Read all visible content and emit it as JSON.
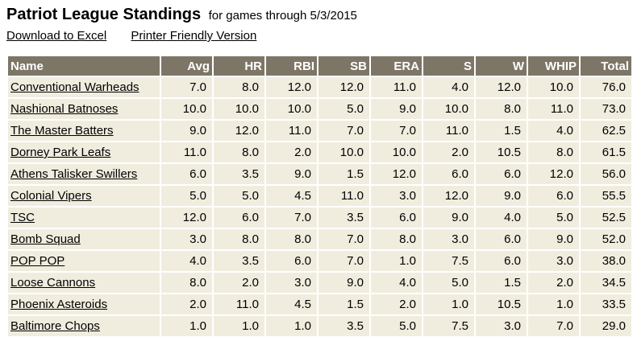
{
  "header": {
    "title": "Patriot League Standings",
    "subtitle": "for games through 5/3/2015",
    "links": [
      {
        "label": "Download to Excel"
      },
      {
        "label": "Printer Friendly Version"
      }
    ]
  },
  "table": {
    "columns": [
      "Name",
      "Avg",
      "HR",
      "RBI",
      "SB",
      "ERA",
      "S",
      "W",
      "WHIP",
      "Total"
    ],
    "rows": [
      {
        "name": "Conventional Warheads",
        "values": [
          "7.0",
          "8.0",
          "12.0",
          "12.0",
          "11.0",
          "4.0",
          "12.0",
          "10.0",
          "76.0"
        ]
      },
      {
        "name": "Nashional Batnoses",
        "values": [
          "10.0",
          "10.0",
          "10.0",
          "5.0",
          "9.0",
          "10.0",
          "8.0",
          "11.0",
          "73.0"
        ]
      },
      {
        "name": "The Master Batters",
        "values": [
          "9.0",
          "12.0",
          "11.0",
          "7.0",
          "7.0",
          "11.0",
          "1.5",
          "4.0",
          "62.5"
        ]
      },
      {
        "name": "Dorney Park Leafs",
        "values": [
          "11.0",
          "8.0",
          "2.0",
          "10.0",
          "10.0",
          "2.0",
          "10.5",
          "8.0",
          "61.5"
        ]
      },
      {
        "name": "Athens Talisker Swillers",
        "values": [
          "6.0",
          "3.5",
          "9.0",
          "1.5",
          "12.0",
          "6.0",
          "6.0",
          "12.0",
          "56.0"
        ]
      },
      {
        "name": "Colonial Vipers",
        "values": [
          "5.0",
          "5.0",
          "4.5",
          "11.0",
          "3.0",
          "12.0",
          "9.0",
          "6.0",
          "55.5"
        ]
      },
      {
        "name": "TSC",
        "values": [
          "12.0",
          "6.0",
          "7.0",
          "3.5",
          "6.0",
          "9.0",
          "4.0",
          "5.0",
          "52.5"
        ]
      },
      {
        "name": "Bomb Squad",
        "values": [
          "3.0",
          "8.0",
          "8.0",
          "7.0",
          "8.0",
          "3.0",
          "6.0",
          "9.0",
          "52.0"
        ]
      },
      {
        "name": "POP POP",
        "values": [
          "4.0",
          "3.5",
          "6.0",
          "7.0",
          "1.0",
          "7.5",
          "6.0",
          "3.0",
          "38.0"
        ]
      },
      {
        "name": "Loose Cannons",
        "values": [
          "8.0",
          "2.0",
          "3.0",
          "9.0",
          "4.0",
          "5.0",
          "1.5",
          "2.0",
          "34.5"
        ]
      },
      {
        "name": "Phoenix Asteroids",
        "values": [
          "2.0",
          "11.0",
          "4.5",
          "1.5",
          "2.0",
          "1.0",
          "10.5",
          "1.0",
          "33.5"
        ]
      },
      {
        "name": "Baltimore Chops",
        "values": [
          "1.0",
          "1.0",
          "1.0",
          "3.5",
          "5.0",
          "7.5",
          "3.0",
          "7.0",
          "29.0"
        ]
      }
    ]
  },
  "colors": {
    "header_bg": "#7D7667",
    "header_text": "#FFFFFF",
    "row_bg": "#F0EDDF",
    "separator": "#FFFFFF",
    "text": "#000000"
  }
}
